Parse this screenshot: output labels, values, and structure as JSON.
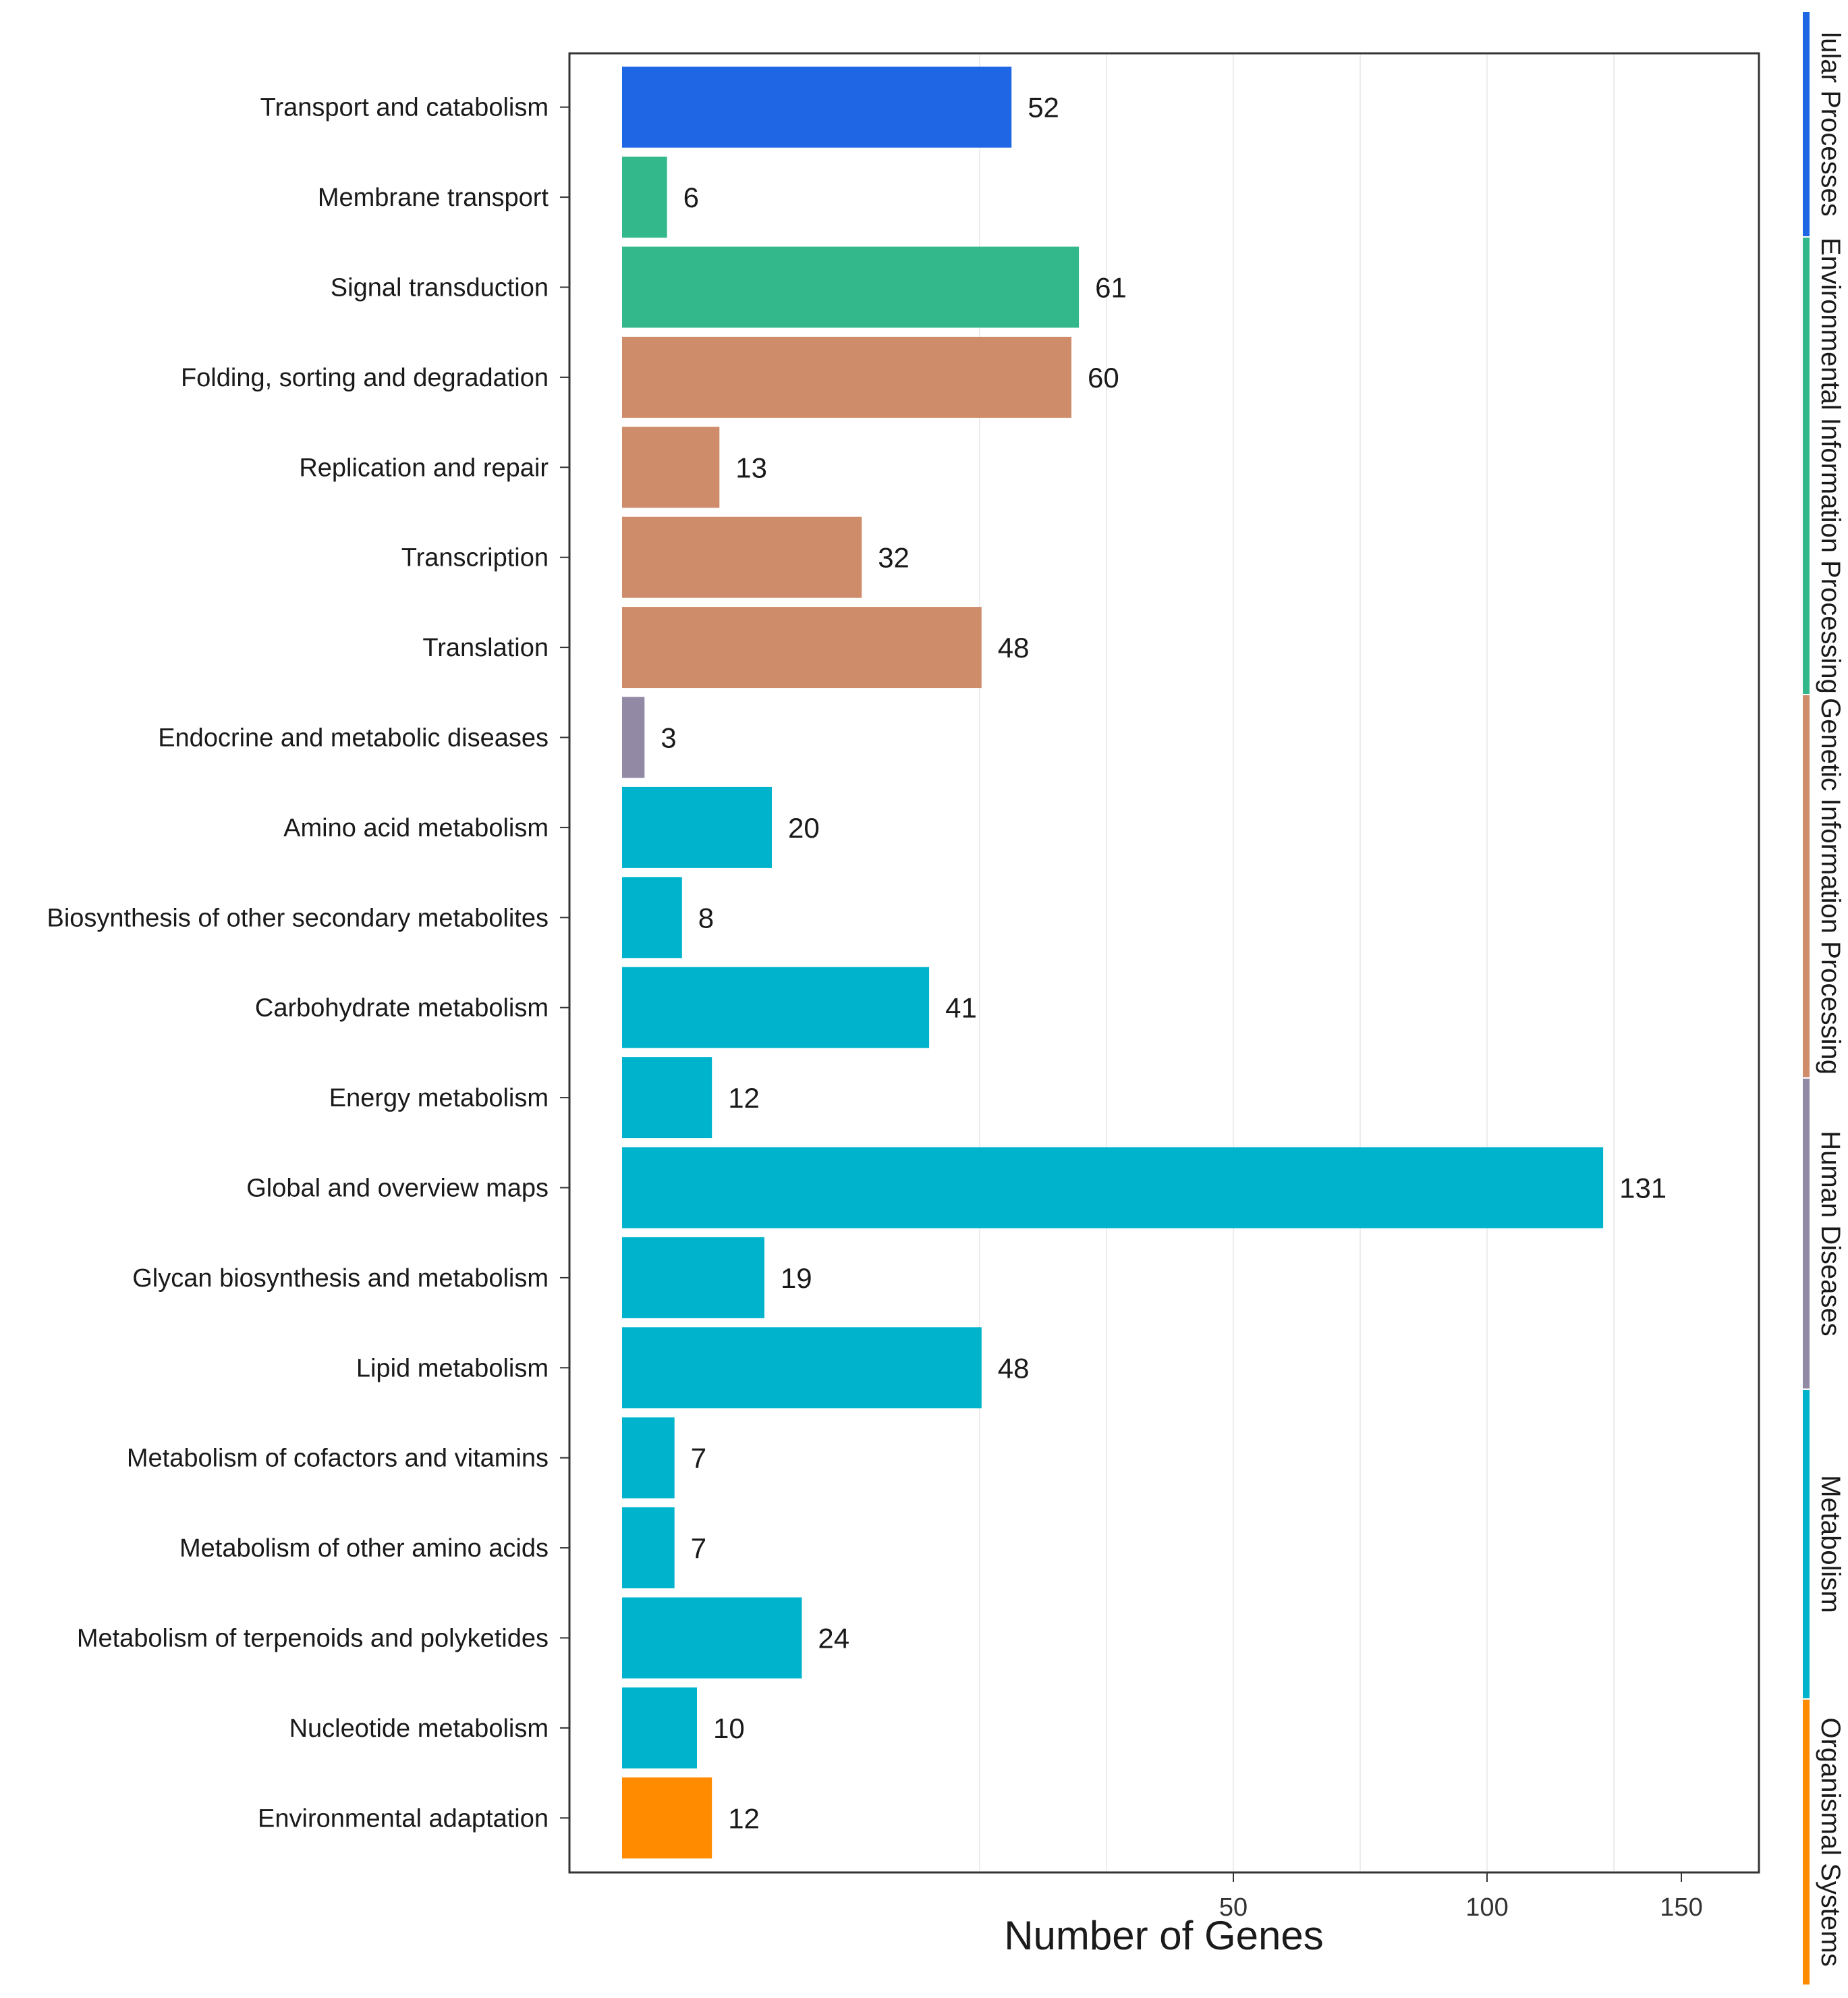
{
  "chart_data": {
    "type": "bar",
    "orientation": "horizontal",
    "xlabel": "Number of Genes",
    "ylabel": "",
    "x_ticks": [
      "50",
      "100",
      "150"
    ],
    "grid": true,
    "legend": "none",
    "colors": {
      "Cellular Processes": "#1f66e5",
      "Environmental Information Processing": "#33b88b",
      "Genetic Information Processing": "#cf8c6a",
      "Human Diseases": "#9289a4",
      "Metabolism": "#00b3cc",
      "Organismal Systems": "#ff8c00"
    },
    "groups": [
      {
        "name": "Cellular Processes",
        "label": "lular Processes",
        "color": "#1f66e5",
        "count": 1
      },
      {
        "name": "Environmental Information Processing",
        "label": "Environmental Information Processing",
        "color": "#33b88b",
        "count": 2
      },
      {
        "name": "Genetic Information Processing",
        "label": "Genetic Information Processing",
        "color": "#cf8c6a",
        "count": 4
      },
      {
        "name": "Human Diseases",
        "label": "Human Diseases",
        "color": "#9289a4",
        "count": 1
      },
      {
        "name": "Metabolism",
        "label": "Metabolism",
        "color": "#00b3cc",
        "count": 11
      },
      {
        "name": "Organismal Systems",
        "label": "Organismal Systems",
        "color": "#ff8c00",
        "count": 1
      }
    ],
    "categories": [
      "Transport and catabolism",
      "Membrane transport",
      "Signal transduction",
      "Folding, sorting and degradation",
      "Replication and repair",
      "Transcription",
      "Translation",
      "Endocrine and metabolic diseases",
      "Amino acid metabolism",
      "Biosynthesis of other secondary metabolites",
      "Carbohydrate metabolism",
      "Energy metabolism",
      "Global and overview maps",
      "Glycan biosynthesis and metabolism",
      "Lipid metabolism",
      "Metabolism of cofactors and vitamins",
      "Metabolism of other amino acids",
      "Metabolism of terpenoids and polyketides",
      "Nucleotide metabolism",
      "Environmental adaptation"
    ],
    "values": [
      52,
      6,
      61,
      60,
      13,
      32,
      48,
      3,
      20,
      8,
      41,
      12,
      131,
      19,
      48,
      7,
      7,
      24,
      10,
      12
    ],
    "value_labels": [
      "52",
      "6",
      "61",
      "60",
      "13",
      "32",
      "48",
      "3",
      "20",
      "8",
      "41",
      "12",
      "131",
      "19",
      "48",
      "7",
      "7",
      "24",
      "10",
      "12"
    ]
  }
}
